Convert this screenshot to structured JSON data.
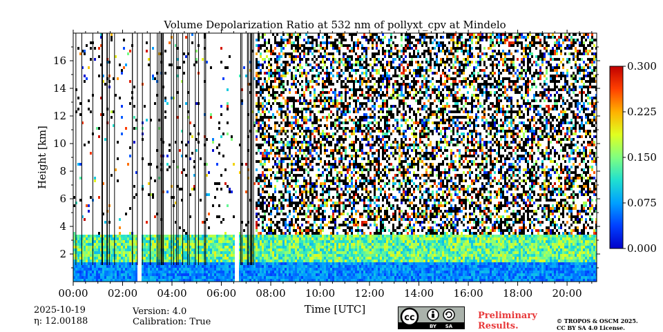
{
  "chart_data": {
    "type": "heatmap",
    "title": "Volume Depolarization Ratio at 532 nm of pollyxt_cpv at Mindelo",
    "xlabel": "Time [UTC]",
    "ylabel": "Height [km]",
    "x_ticks": [
      "00:00",
      "02:00",
      "04:00",
      "06:00",
      "08:00",
      "10:00",
      "12:00",
      "14:00",
      "16:00",
      "18:00",
      "20:00"
    ],
    "x_tick_hours": [
      0,
      2,
      4,
      6,
      8,
      10,
      12,
      14,
      16,
      18,
      20
    ],
    "xlim_hours": [
      0,
      21.2
    ],
    "y_ticks": [
      "2",
      "4",
      "6",
      "8",
      "10",
      "12",
      "14",
      "16"
    ],
    "y_tick_values": [
      2,
      4,
      6,
      8,
      10,
      12,
      14,
      16
    ],
    "ylim": [
      0,
      18
    ],
    "colorbar": {
      "ticks": [
        "0.000",
        "0.075",
        "0.150",
        "0.225",
        "0.300"
      ],
      "range": [
        0,
        0.3
      ],
      "colormap": "jet"
    },
    "features": {
      "cloud_gap_hours": [
        [
          2.6,
          2.75
        ],
        [
          6.55,
          6.7
        ]
      ],
      "boundary_layer_top_km": 1.5,
      "aerosol_layer_km": [
        1.6,
        3.4
      ],
      "noise_onset_hour": 7.4
    }
  },
  "footer": {
    "date": "2025-10-19",
    "eta_label": "η: 12.00188",
    "version": "Version: 4.0",
    "calibration": "Calibration: True",
    "prelim_line1": "Preliminary",
    "prelim_line2": "Results.",
    "copyright_line1": "© TROPOS & OSCM 2025.",
    "copyright_line2": "CC BY SA 4.0 License."
  },
  "license_badge": {
    "icons": [
      "cc-icon",
      "attribution-icon",
      "share-alike-icon"
    ],
    "label_by": "BY",
    "label_sa": "SA"
  }
}
